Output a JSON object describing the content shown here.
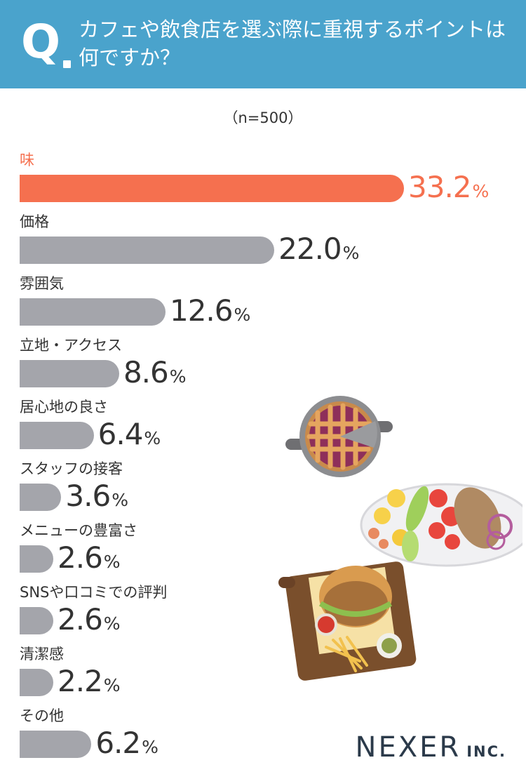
{
  "header": {
    "q_mark": "Q",
    "question": "カフェや飲食店を選ぶ際に重視するポイントは何ですか？"
  },
  "sample_note": "（n=500）",
  "colors": {
    "header_bg": "#4aa3cc",
    "highlight": "#f5704f",
    "bar": "#a4a5ab"
  },
  "chart_data": {
    "type": "bar",
    "orientation": "horizontal",
    "categories": [
      "味",
      "価格",
      "雰囲気",
      "立地・アクセス",
      "居心地の良さ",
      "スタッフの接客",
      "メニューの豊富さ",
      "SNSや口コミでの評判",
      "清潔感",
      "その他"
    ],
    "values": [
      33.2,
      22.0,
      12.6,
      8.6,
      6.4,
      3.6,
      2.6,
      2.6,
      2.2,
      6.2
    ],
    "value_labels": [
      "33.2",
      "22.0",
      "12.6",
      "8.6",
      "6.4",
      "3.6",
      "2.6",
      "2.6",
      "2.2",
      "6.2"
    ],
    "unit": "%",
    "highlight_index": 0
  },
  "logo": {
    "main": "NEXER",
    "sub": "INC."
  }
}
